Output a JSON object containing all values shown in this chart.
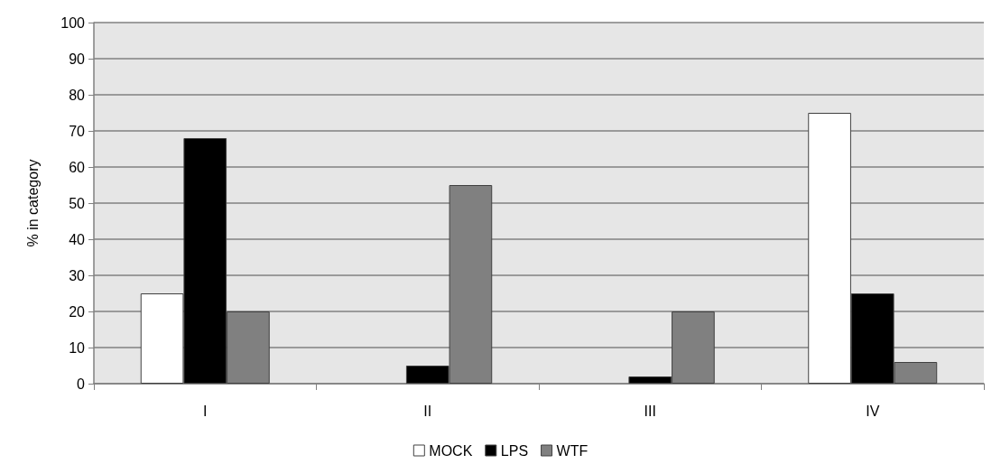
{
  "chart_data": {
    "type": "bar",
    "ylabel": "% in category",
    "categories": [
      "I",
      "II",
      "III",
      "IV"
    ],
    "series": [
      {
        "name": "MOCK",
        "color": "#ffffff",
        "values": [
          25,
          0,
          0,
          75
        ]
      },
      {
        "name": "LPS",
        "color": "#000000",
        "values": [
          68,
          5,
          2,
          25
        ]
      },
      {
        "name": "WTF",
        "color": "#808080",
        "values": [
          20,
          55,
          20,
          6
        ]
      }
    ],
    "ylim": [
      0,
      100
    ],
    "yticks": [
      0,
      10,
      20,
      30,
      40,
      50,
      60,
      70,
      80,
      90,
      100
    ],
    "grid": "y",
    "legend": "bottom"
  }
}
